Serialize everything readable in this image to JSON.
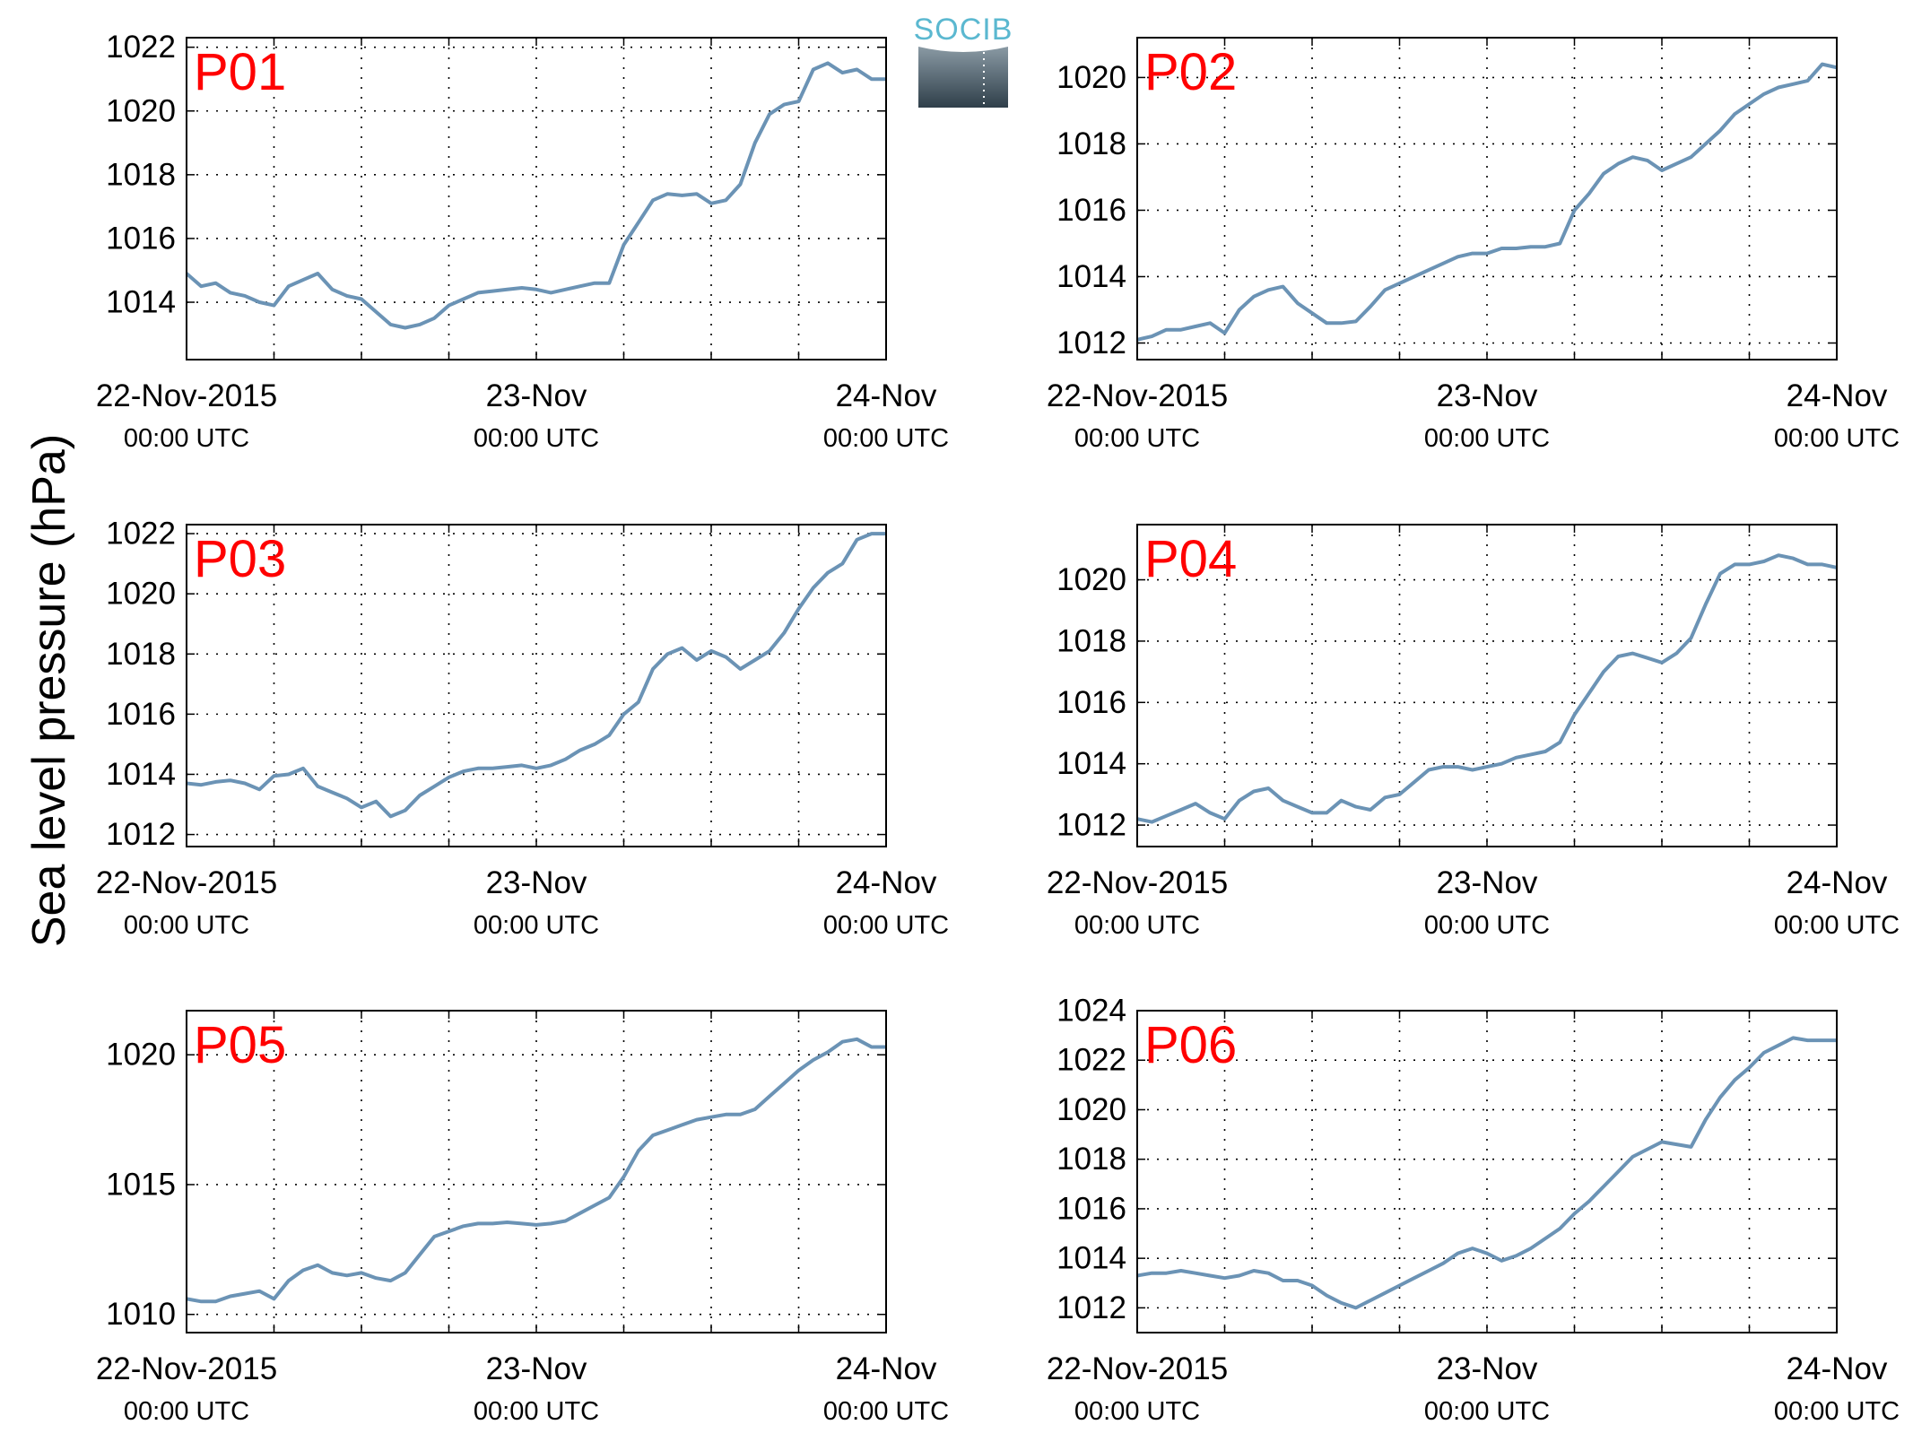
{
  "figure": {
    "ylabel": "Sea level pressure (hPa)",
    "logo_text": "SOCIB",
    "line_color": "#6b93b5",
    "panel_label_color": "#ff0000",
    "x_ticks": [
      {
        "value": 0,
        "date": "22-Nov-2015",
        "time": "00:00 UTC"
      },
      {
        "value": 24,
        "date": "23-Nov",
        "time": "00:00 UTC"
      },
      {
        "value": 48,
        "date": "24-Nov",
        "time": "00:00 UTC"
      }
    ],
    "x_grid": [
      0,
      6,
      12,
      18,
      24,
      30,
      36,
      42,
      48
    ],
    "x_unit": "hours since 22-Nov-2015 00:00 UTC"
  },
  "chart_data": [
    {
      "type": "line",
      "label": "P01",
      "xlim": [
        0,
        48
      ],
      "ylim": [
        1012.2,
        1022.3
      ],
      "yticks": [
        1014,
        1016,
        1018,
        1020,
        1022
      ],
      "x": [
        0,
        1,
        2,
        3,
        4,
        5,
        6,
        7,
        8,
        9,
        10,
        11,
        12,
        13,
        14,
        15,
        16,
        17,
        18,
        19,
        20,
        21,
        22,
        23,
        24,
        25,
        26,
        27,
        28,
        29,
        30,
        31,
        32,
        33,
        34,
        35,
        36,
        37,
        38,
        39,
        40,
        41,
        42,
        43,
        44,
        45,
        46,
        47,
        48
      ],
      "y": [
        1014.9,
        1014.5,
        1014.6,
        1014.3,
        1014.2,
        1014.0,
        1013.9,
        1014.5,
        1014.7,
        1014.9,
        1014.4,
        1014.2,
        1014.1,
        1013.7,
        1013.3,
        1013.2,
        1013.3,
        1013.5,
        1013.9,
        1014.1,
        1014.3,
        1014.35,
        1014.4,
        1014.45,
        1014.4,
        1014.3,
        1014.4,
        1014.5,
        1014.6,
        1014.6,
        1015.8,
        1016.5,
        1017.2,
        1017.4,
        1017.35,
        1017.4,
        1017.1,
        1017.2,
        1017.7,
        1019.0,
        1019.9,
        1020.2,
        1020.3,
        1021.3,
        1021.5,
        1021.2,
        1021.3,
        1021.0,
        1021.0
      ]
    },
    {
      "type": "line",
      "label": "P02",
      "xlim": [
        0,
        48
      ],
      "ylim": [
        1011.5,
        1021.2
      ],
      "yticks": [
        1012,
        1014,
        1016,
        1018,
        1020
      ],
      "x": [
        0,
        1,
        2,
        3,
        4,
        5,
        6,
        7,
        8,
        9,
        10,
        11,
        12,
        13,
        14,
        15,
        16,
        17,
        18,
        19,
        20,
        21,
        22,
        23,
        24,
        25,
        26,
        27,
        28,
        29,
        30,
        31,
        32,
        33,
        34,
        35,
        36,
        37,
        38,
        39,
        40,
        41,
        42,
        43,
        44,
        45,
        46,
        47,
        48
      ],
      "y": [
        1012.1,
        1012.2,
        1012.4,
        1012.4,
        1012.5,
        1012.6,
        1012.3,
        1013.0,
        1013.4,
        1013.6,
        1013.7,
        1013.2,
        1012.9,
        1012.6,
        1012.6,
        1012.65,
        1013.1,
        1013.6,
        1013.8,
        1014.0,
        1014.2,
        1014.4,
        1014.6,
        1014.7,
        1014.7,
        1014.85,
        1014.85,
        1014.9,
        1014.9,
        1015.0,
        1016.0,
        1016.5,
        1017.1,
        1017.4,
        1017.6,
        1017.5,
        1017.2,
        1017.4,
        1017.6,
        1018.0,
        1018.4,
        1018.9,
        1019.2,
        1019.5,
        1019.7,
        1019.8,
        1019.9,
        1020.4,
        1020.3
      ]
    },
    {
      "type": "line",
      "label": "P03",
      "xlim": [
        0,
        48
      ],
      "ylim": [
        1011.6,
        1022.3
      ],
      "yticks": [
        1012,
        1014,
        1016,
        1018,
        1020,
        1022
      ],
      "x": [
        0,
        1,
        2,
        3,
        4,
        5,
        6,
        7,
        8,
        9,
        10,
        11,
        12,
        13,
        14,
        15,
        16,
        17,
        18,
        19,
        20,
        21,
        22,
        23,
        24,
        25,
        26,
        27,
        28,
        29,
        30,
        31,
        32,
        33,
        34,
        35,
        36,
        37,
        38,
        39,
        40,
        41,
        42,
        43,
        44,
        45,
        46,
        47,
        48
      ],
      "y": [
        1013.7,
        1013.65,
        1013.75,
        1013.8,
        1013.7,
        1013.5,
        1013.95,
        1014.0,
        1014.2,
        1013.6,
        1013.4,
        1013.2,
        1012.9,
        1013.1,
        1012.6,
        1012.8,
        1013.3,
        1013.6,
        1013.9,
        1014.1,
        1014.2,
        1014.2,
        1014.25,
        1014.3,
        1014.2,
        1014.3,
        1014.5,
        1014.8,
        1015.0,
        1015.3,
        1016.0,
        1016.4,
        1017.5,
        1018.0,
        1018.2,
        1017.8,
        1018.1,
        1017.9,
        1017.5,
        1017.8,
        1018.1,
        1018.7,
        1019.5,
        1020.2,
        1020.7,
        1021.0,
        1021.8,
        1022.0,
        1022.0
      ]
    },
    {
      "type": "line",
      "label": "P04",
      "xlim": [
        0,
        48
      ],
      "ylim": [
        1011.3,
        1021.8
      ],
      "yticks": [
        1012,
        1014,
        1016,
        1018,
        1020
      ],
      "x": [
        0,
        1,
        2,
        3,
        4,
        5,
        6,
        7,
        8,
        9,
        10,
        11,
        12,
        13,
        14,
        15,
        16,
        17,
        18,
        19,
        20,
        21,
        22,
        23,
        24,
        25,
        26,
        27,
        28,
        29,
        30,
        31,
        32,
        33,
        34,
        35,
        36,
        37,
        38,
        39,
        40,
        41,
        42,
        43,
        44,
        45,
        46,
        47,
        48
      ],
      "y": [
        1012.2,
        1012.1,
        1012.3,
        1012.5,
        1012.7,
        1012.4,
        1012.2,
        1012.8,
        1013.1,
        1013.2,
        1012.8,
        1012.6,
        1012.4,
        1012.4,
        1012.8,
        1012.6,
        1012.5,
        1012.9,
        1013.0,
        1013.4,
        1013.8,
        1013.9,
        1013.9,
        1013.8,
        1013.9,
        1014.0,
        1014.2,
        1014.3,
        1014.4,
        1014.7,
        1015.6,
        1016.3,
        1017.0,
        1017.5,
        1017.6,
        1017.45,
        1017.3,
        1017.6,
        1018.1,
        1019.2,
        1020.2,
        1020.5,
        1020.5,
        1020.6,
        1020.8,
        1020.7,
        1020.5,
        1020.5,
        1020.4
      ]
    },
    {
      "type": "line",
      "label": "P05",
      "xlim": [
        0,
        48
      ],
      "ylim": [
        1009.3,
        1021.7
      ],
      "yticks": [
        1010,
        1015,
        1020
      ],
      "x": [
        0,
        1,
        2,
        3,
        4,
        5,
        6,
        7,
        8,
        9,
        10,
        11,
        12,
        13,
        14,
        15,
        16,
        17,
        18,
        19,
        20,
        21,
        22,
        23,
        24,
        25,
        26,
        27,
        28,
        29,
        30,
        31,
        32,
        33,
        34,
        35,
        36,
        37,
        38,
        39,
        40,
        41,
        42,
        43,
        44,
        45,
        46,
        47,
        48
      ],
      "y": [
        1010.6,
        1010.5,
        1010.5,
        1010.7,
        1010.8,
        1010.9,
        1010.6,
        1011.3,
        1011.7,
        1011.9,
        1011.6,
        1011.5,
        1011.6,
        1011.4,
        1011.3,
        1011.6,
        1012.3,
        1013.0,
        1013.2,
        1013.4,
        1013.5,
        1013.5,
        1013.55,
        1013.5,
        1013.45,
        1013.5,
        1013.6,
        1013.9,
        1014.2,
        1014.5,
        1015.3,
        1016.3,
        1016.9,
        1017.1,
        1017.3,
        1017.5,
        1017.6,
        1017.7,
        1017.7,
        1017.9,
        1018.4,
        1018.9,
        1019.4,
        1019.8,
        1020.1,
        1020.5,
        1020.6,
        1020.3,
        1020.3
      ]
    },
    {
      "type": "line",
      "label": "P06",
      "xlim": [
        0,
        48
      ],
      "ylim": [
        1011.0,
        1024.0
      ],
      "yticks": [
        1012,
        1014,
        1016,
        1018,
        1020,
        1022,
        1024
      ],
      "x": [
        0,
        1,
        2,
        3,
        4,
        5,
        6,
        7,
        8,
        9,
        10,
        11,
        12,
        13,
        14,
        15,
        16,
        17,
        18,
        19,
        20,
        21,
        22,
        23,
        24,
        25,
        26,
        27,
        28,
        29,
        30,
        31,
        32,
        33,
        34,
        35,
        36,
        37,
        38,
        39,
        40,
        41,
        42,
        43,
        44,
        45,
        46,
        47,
        48
      ],
      "y": [
        1013.3,
        1013.4,
        1013.4,
        1013.5,
        1013.4,
        1013.3,
        1013.2,
        1013.3,
        1013.5,
        1013.4,
        1013.1,
        1013.1,
        1012.9,
        1012.5,
        1012.2,
        1012.0,
        1012.3,
        1012.6,
        1012.9,
        1013.2,
        1013.5,
        1013.8,
        1014.2,
        1014.4,
        1014.2,
        1013.9,
        1014.1,
        1014.4,
        1014.8,
        1015.2,
        1015.8,
        1016.3,
        1016.9,
        1017.5,
        1018.1,
        1018.4,
        1018.7,
        1018.6,
        1018.5,
        1019.6,
        1020.5,
        1021.2,
        1021.7,
        1022.3,
        1022.6,
        1022.9,
        1022.8,
        1022.8,
        1022.8
      ]
    }
  ]
}
